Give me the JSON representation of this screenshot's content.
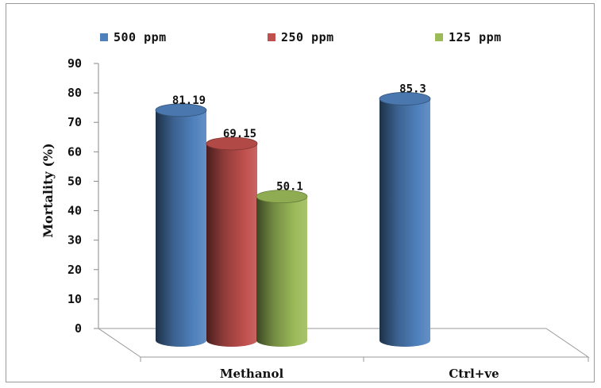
{
  "chart_data": {
    "type": "bar",
    "style": "3d-cylinder",
    "categories": [
      "Methanol",
      "Ctrl+ve"
    ],
    "series": [
      {
        "name": "500 ppm",
        "color": "#4f81bd",
        "values": [
          81.19,
          85.3
        ]
      },
      {
        "name": "250 ppm",
        "color": "#c0504d",
        "values": [
          69.15,
          null
        ]
      },
      {
        "name": "125 ppm",
        "color": "#9bbb59",
        "values": [
          50.1,
          null
        ]
      }
    ],
    "data_labels": [
      {
        "series": 0,
        "category": 0,
        "text": "81.19"
      },
      {
        "series": 1,
        "category": 0,
        "text": "69.15"
      },
      {
        "series": 2,
        "category": 0,
        "text": "50.1"
      },
      {
        "series": 0,
        "category": 1,
        "text": "85.3"
      }
    ],
    "ylabel": "Mortality (%)",
    "xlabel": "",
    "title": "",
    "ylim": [
      0,
      90
    ],
    "yticks": [
      0,
      10,
      20,
      30,
      40,
      50,
      60,
      70,
      80,
      90
    ],
    "legend_position": "top",
    "grid": false
  }
}
